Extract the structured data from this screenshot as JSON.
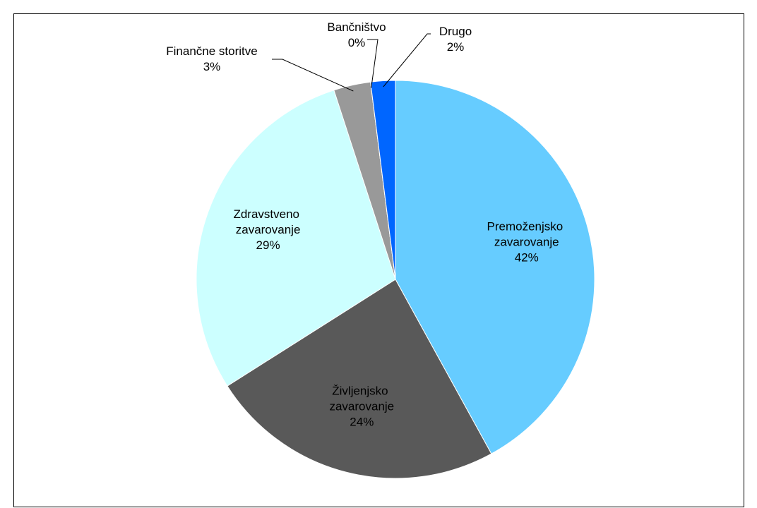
{
  "chart_data": {
    "type": "pie",
    "categories": [
      "Premoženjsko zavarovanje",
      "Življenjsko zavarovanje",
      "Zdravstveno zavarovanje",
      "Finančne storitve",
      "Bančništvo",
      "Drugo"
    ],
    "values": [
      42,
      24,
      29,
      3,
      0,
      2
    ],
    "value_labels": [
      "42%",
      "24%",
      "29%",
      "3%",
      "0%",
      "2%"
    ],
    "colors": [
      "#66ccff",
      "#595959",
      "#ccffff",
      "#999999",
      "#c0c0c0",
      "#0066ff"
    ]
  }
}
